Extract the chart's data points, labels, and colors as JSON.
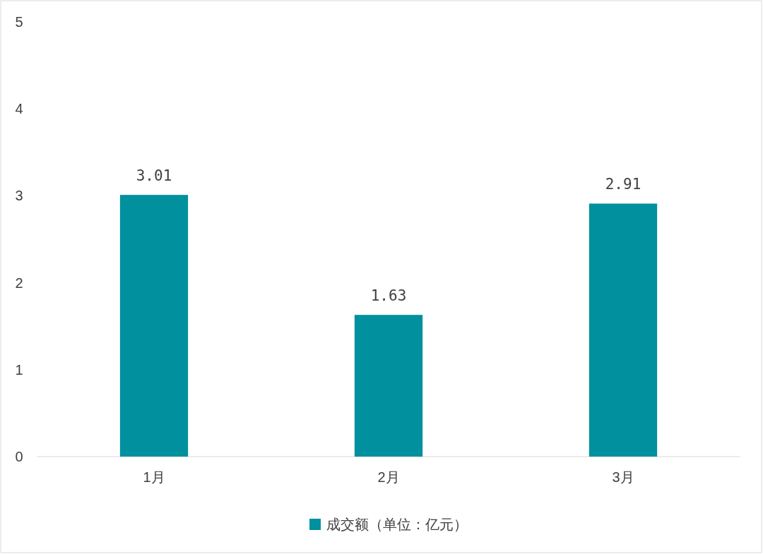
{
  "chart_data": {
    "type": "bar",
    "categories": [
      "1月",
      "2月",
      "3月"
    ],
    "series": [
      {
        "name": "成交额（单位：亿元）",
        "color": "#00909e",
        "values": [
          3.01,
          1.63,
          2.91
        ]
      }
    ],
    "ylim": [
      0,
      5
    ],
    "yticks": [
      0,
      1,
      2,
      3,
      4,
      5
    ],
    "grid": false,
    "legend": "bottom",
    "data_labels": true
  }
}
